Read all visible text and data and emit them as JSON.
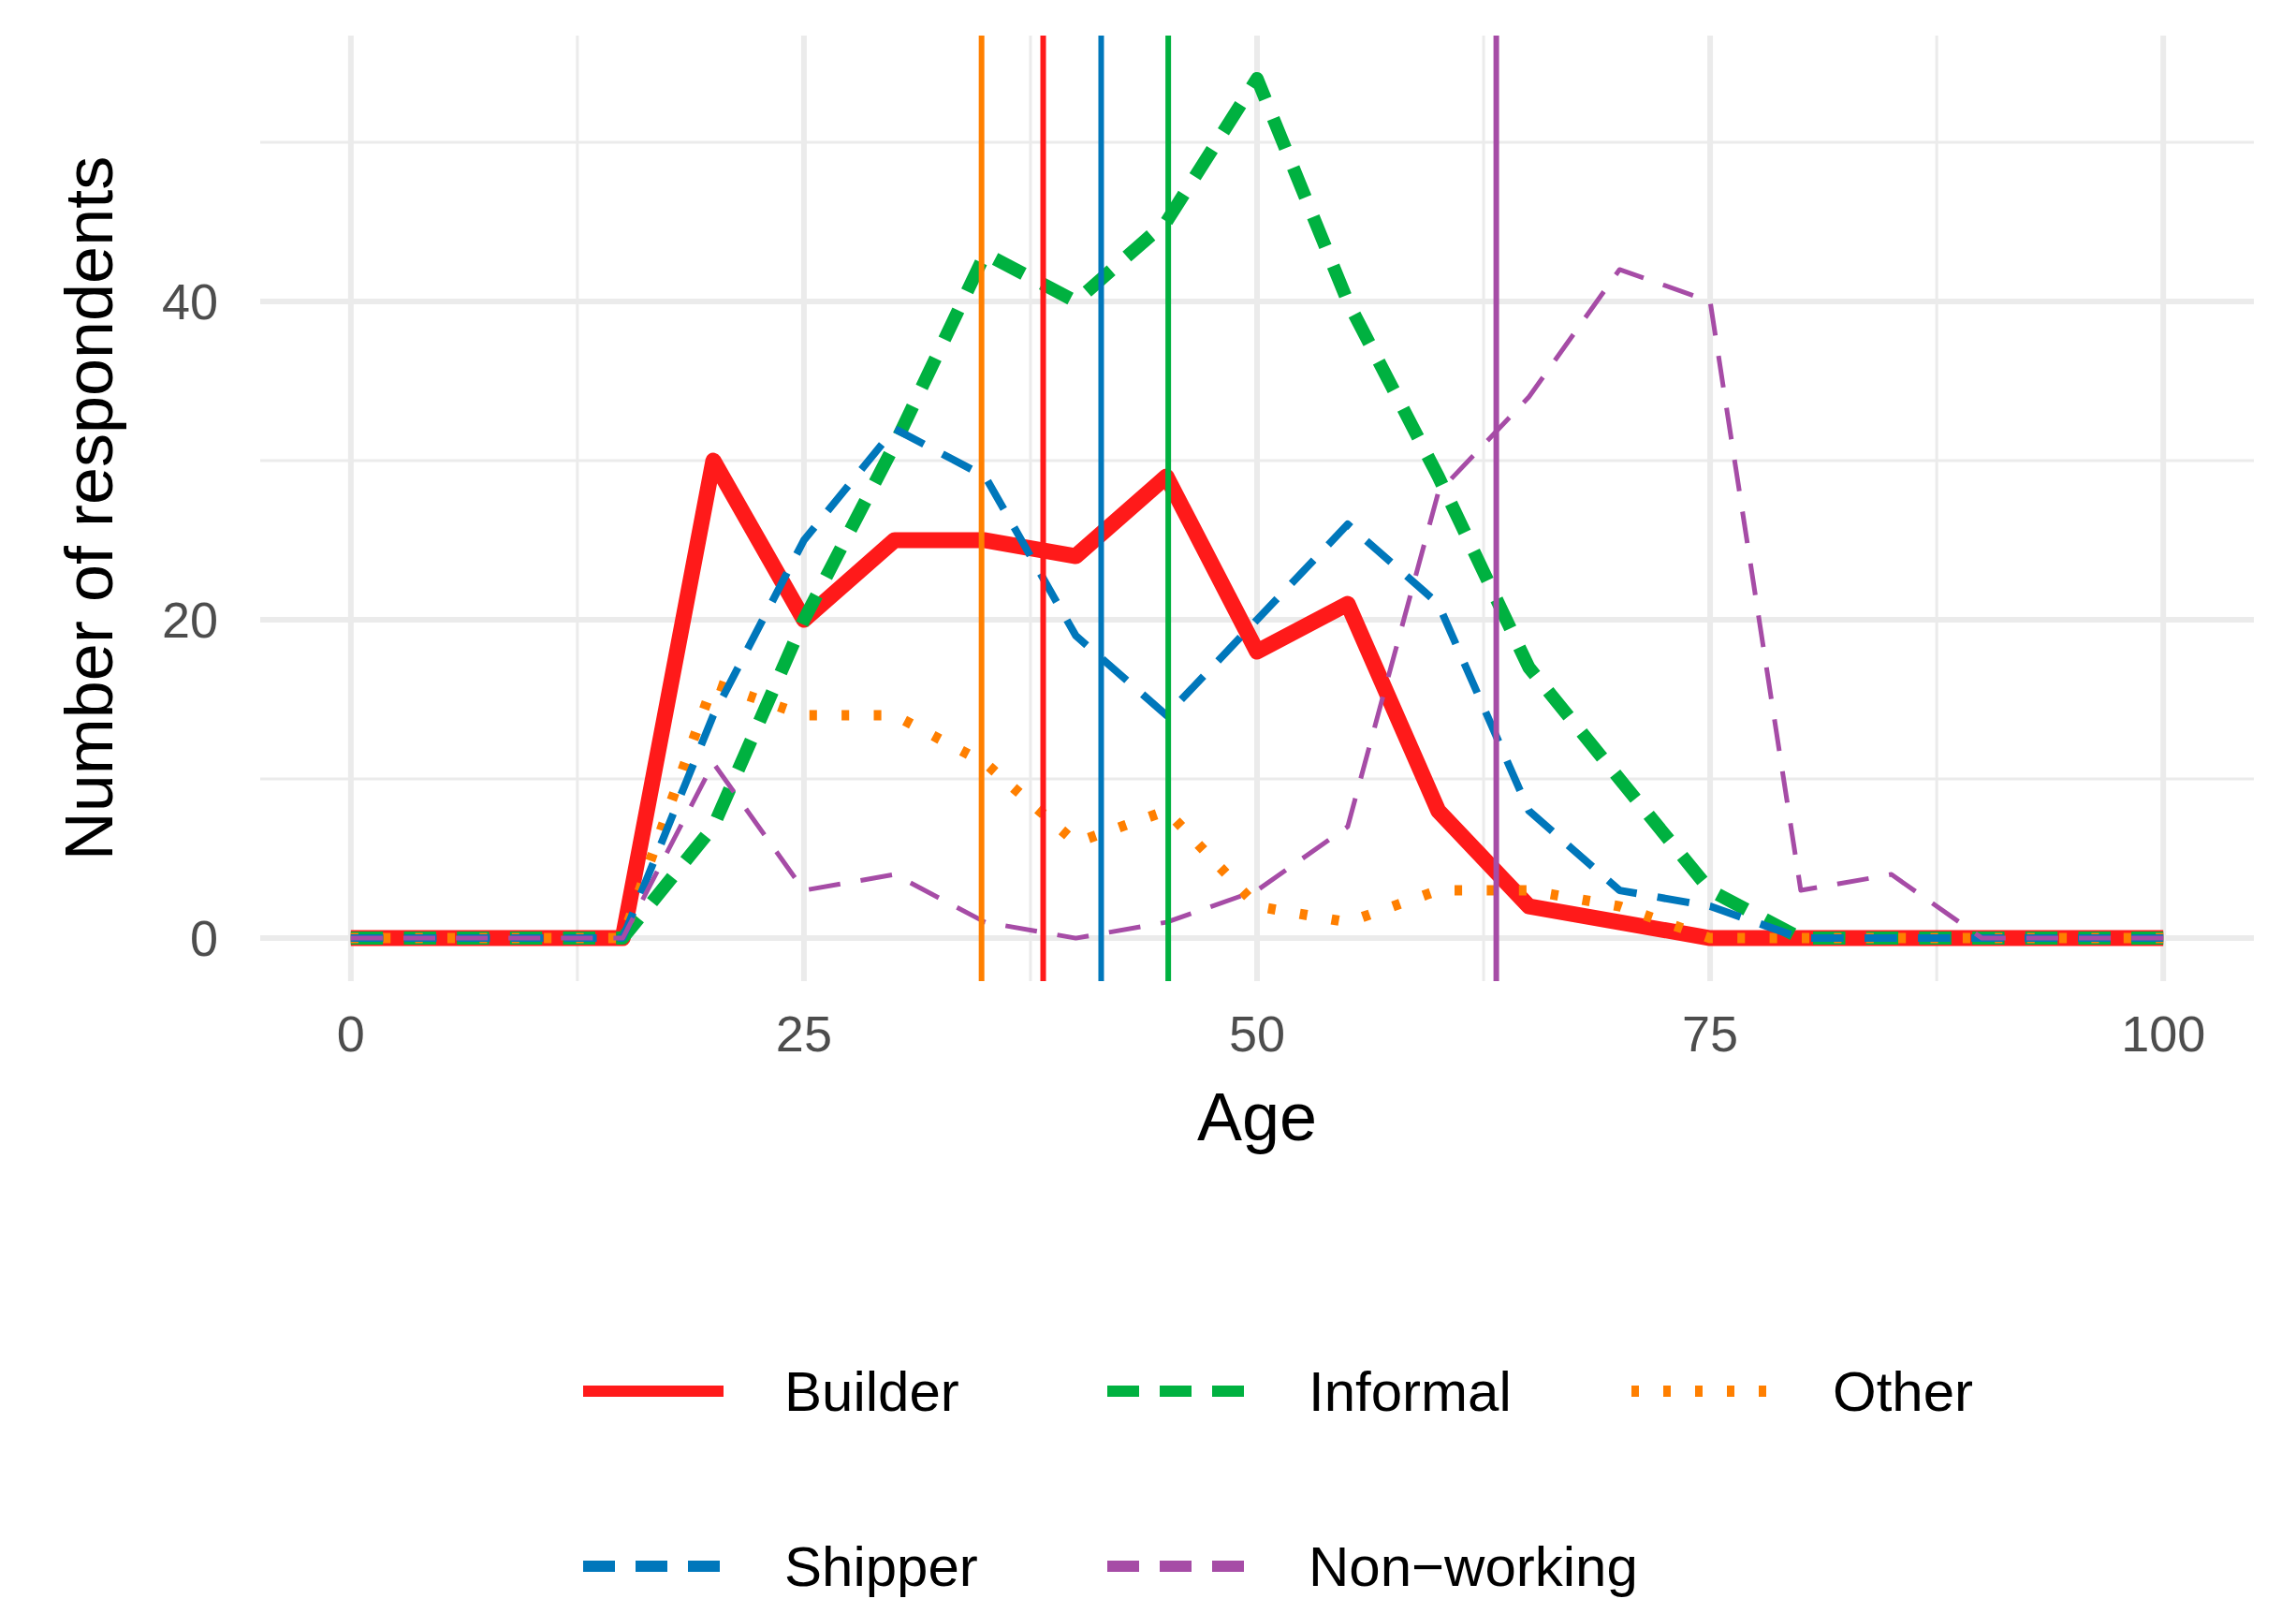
{
  "chart_data": {
    "type": "line",
    "xlabel": "Age",
    "ylabel": "Number of respondents",
    "x": [
      0,
      5,
      10,
      15,
      20,
      25,
      30,
      35,
      40,
      45,
      50,
      55,
      60,
      65,
      70,
      75,
      80,
      85,
      90,
      95,
      100
    ],
    "series": [
      {
        "name": "Builder",
        "color": "#ff1a1a",
        "line_style": "solid",
        "values": [
          0,
          0,
          0,
          0,
          30,
          20,
          25,
          25,
          24,
          29,
          18,
          21,
          8,
          2,
          1,
          0,
          0,
          0,
          0,
          0,
          0
        ]
      },
      {
        "name": "Informal",
        "color": "#00b140",
        "line_style": "dashed",
        "values": [
          0,
          0,
          0,
          0,
          7,
          20,
          31,
          43,
          40,
          45,
          54,
          40,
          29,
          17,
          10,
          3,
          0,
          0,
          0,
          0,
          0
        ]
      },
      {
        "name": "Other",
        "color": "#ff7f00",
        "line_style": "dotted",
        "values": [
          0,
          0,
          0,
          0,
          16,
          14,
          14,
          11,
          6,
          8,
          2,
          1,
          3,
          3,
          2,
          0,
          0,
          0,
          0,
          0,
          0
        ]
      },
      {
        "name": "Shipper",
        "color": "#0077bb",
        "line_style": "dashed",
        "values": [
          0,
          0,
          0,
          0,
          14,
          25,
          32,
          29,
          19,
          14,
          20,
          26,
          21,
          8,
          3,
          2,
          0,
          0,
          0,
          0,
          0
        ]
      },
      {
        "name": "Non−working",
        "color": "#a64ca6",
        "line_style": "dashed",
        "values": [
          0,
          0,
          0,
          0,
          11,
          3,
          4,
          1,
          0,
          1,
          3,
          7,
          28,
          34,
          42,
          40,
          3,
          4,
          0,
          0,
          0
        ]
      }
    ],
    "ref_lines": [
      {
        "axis": "x",
        "value": 34.8,
        "color": "#ff7f00"
      },
      {
        "axis": "x",
        "value": 38.2,
        "color": "#ff1a1a"
      },
      {
        "axis": "x",
        "value": 41.4,
        "color": "#0077bb"
      },
      {
        "axis": "x",
        "value": 45.1,
        "color": "#00b140"
      },
      {
        "axis": "x",
        "value": 63.2,
        "color": "#a64ca6"
      }
    ],
    "xlim": [
      -5,
      105
    ],
    "xticks": [
      0,
      25,
      50,
      75,
      100
    ],
    "ylim": [
      -2.7,
      56.7
    ],
    "yticks": [
      0,
      20,
      40
    ],
    "grid": true,
    "legend": "bottom"
  }
}
